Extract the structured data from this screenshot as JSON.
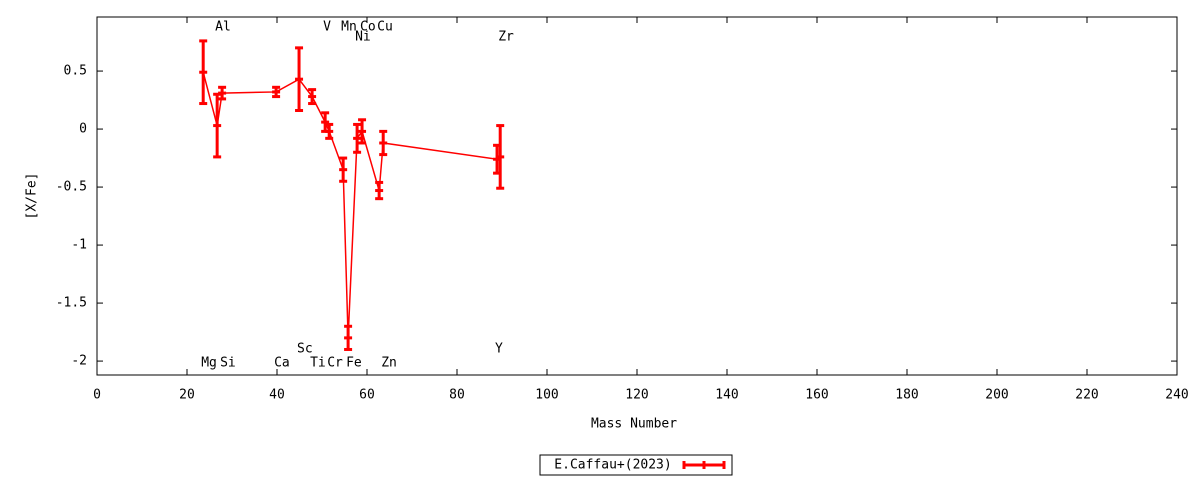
{
  "chart_data": {
    "type": "errorline",
    "xlabel": "Mass Number",
    "ylabel": "[X/Fe]",
    "xlim": [
      0,
      240
    ],
    "ylim": [
      -2.12,
      0.966
    ],
    "xticks": [
      0,
      20,
      40,
      60,
      80,
      100,
      120,
      140,
      160,
      180,
      200,
      220,
      240
    ],
    "yticks": [
      0.5,
      0,
      -0.5,
      -1,
      -1.5,
      -2
    ],
    "grid": false,
    "legend": "bottom",
    "series": [
      {
        "name": "E.Caffau+(2023)",
        "color": "#ff0000",
        "labels": [
          "Mg",
          "Al",
          "Si",
          "Ca",
          "Sc",
          "Ti",
          "V",
          "Cr",
          "Mn",
          "Fe",
          "Ni",
          "Co",
          "Cu",
          "Zn",
          "Y",
          "Zr"
        ],
        "x": [
          23.6,
          26.7,
          27.8,
          39.8,
          44.9,
          47.8,
          50.7,
          51.6,
          54.7,
          55.8,
          57.8,
          58.9,
          62.7,
          63.6,
          88.9,
          89.6
        ],
        "values": [
          0.49,
          0.03,
          0.31,
          0.32,
          0.43,
          0.28,
          0.06,
          -0.02,
          -0.35,
          -1.8,
          -0.08,
          -0.02,
          -0.53,
          -0.12,
          -0.26,
          -0.24
        ],
        "errors": [
          0.27,
          0.27,
          0.05,
          0.04,
          0.27,
          0.06,
          0.08,
          0.06,
          0.1,
          0.1,
          0.12,
          0.1,
          0.07,
          0.1,
          0.12,
          0.27
        ]
      }
    ]
  }
}
